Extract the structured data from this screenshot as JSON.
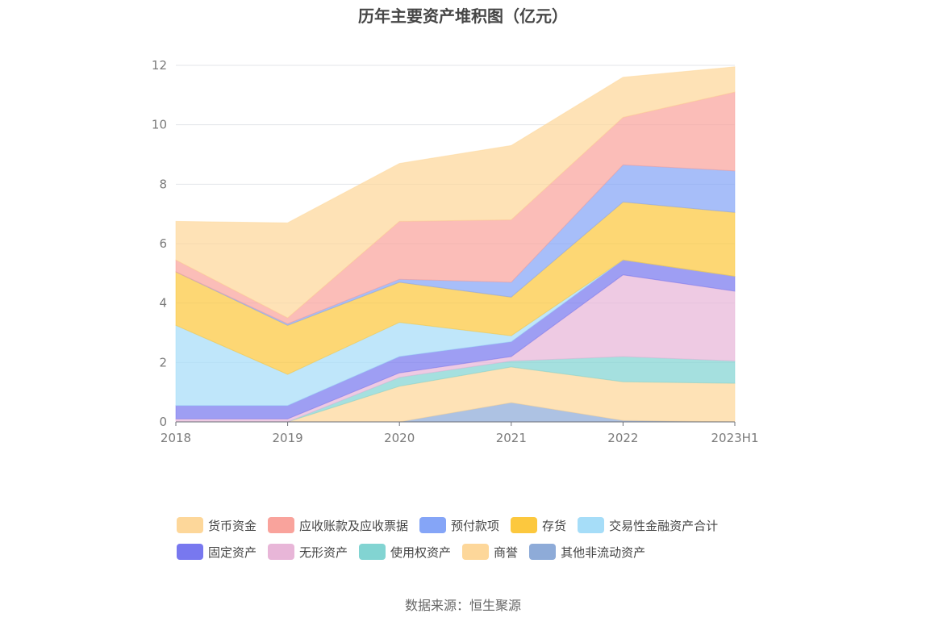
{
  "title": "历年主要资产堆积图（亿元）",
  "source": "数据来源：恒生聚源",
  "chart_data": {
    "type": "area",
    "stacked": true,
    "categories": [
      "2018",
      "2019",
      "2020",
      "2021",
      "2022",
      "2023H1"
    ],
    "ylim": [
      0,
      12
    ],
    "yticks": [
      "0",
      "2",
      "4",
      "6",
      "8",
      "10",
      "12"
    ],
    "grid": true,
    "legend_position": "bottom",
    "series": [
      {
        "name": "其他非流动资产",
        "color": "#8eabd8",
        "values": [
          0,
          0,
          0,
          0.65,
          0.05,
          0
        ]
      },
      {
        "name": "商誉",
        "color": "#fdd79a",
        "values": [
          0,
          0,
          1.2,
          1.2,
          1.3,
          1.3
        ]
      },
      {
        "name": "使用权资产",
        "color": "#82d4d2",
        "values": [
          0,
          0,
          0.3,
          0.2,
          0.85,
          0.75
        ]
      },
      {
        "name": "无形资产",
        "color": "#e8b6d8",
        "values": [
          0.1,
          0.1,
          0.15,
          0.15,
          2.75,
          2.35
        ]
      },
      {
        "name": "固定资产",
        "color": "#7878ef",
        "values": [
          0.45,
          0.45,
          0.55,
          0.5,
          0.5,
          0.5
        ]
      },
      {
        "name": "交易性金融资产合计",
        "color": "#a6ddf8",
        "values": [
          2.7,
          1.05,
          1.15,
          0.2,
          0,
          0
        ]
      },
      {
        "name": "存货",
        "color": "#fcc83e",
        "values": [
          1.8,
          1.65,
          1.35,
          1.3,
          1.95,
          2.15
        ]
      },
      {
        "name": "预付款项",
        "color": "#85a5f7",
        "values": [
          0,
          0.05,
          0.1,
          0.5,
          1.25,
          1.4
        ]
      },
      {
        "name": "应收账款及应收票据",
        "color": "#f9a39c",
        "values": [
          0.4,
          0.2,
          1.95,
          2.1,
          1.6,
          2.65
        ]
      },
      {
        "name": "货币资金",
        "color": "#fdd79a",
        "values": [
          1.3,
          3.2,
          1.95,
          2.5,
          1.35,
          0.85
        ]
      }
    ]
  },
  "legend": {
    "rows": [
      [
        {
          "name": "货币资金",
          "color": "#fdd79a"
        },
        {
          "name": "应收账款及应收票据",
          "color": "#f9a39c"
        },
        {
          "name": "预付款项",
          "color": "#85a5f7"
        },
        {
          "name": "存货",
          "color": "#fcc83e"
        },
        {
          "name": "交易性金融资产合计",
          "color": "#a6ddf8"
        }
      ],
      [
        {
          "name": "固定资产",
          "color": "#7878ef"
        },
        {
          "name": "无形资产",
          "color": "#e8b6d8"
        },
        {
          "name": "使用权资产",
          "color": "#82d4d2"
        },
        {
          "name": "商誉",
          "color": "#fdd79a"
        },
        {
          "name": "其他非流动资产",
          "color": "#8eabd8"
        }
      ]
    ]
  }
}
